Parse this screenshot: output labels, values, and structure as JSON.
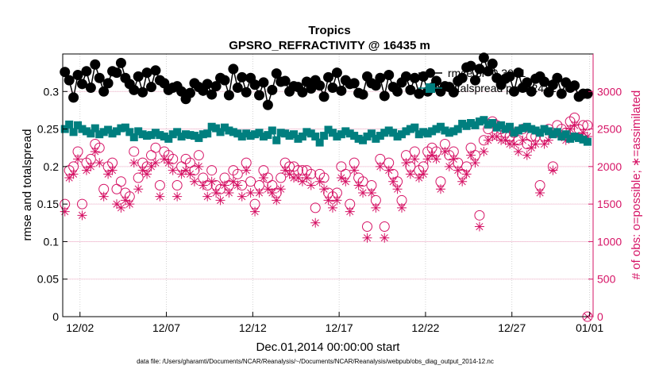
{
  "chart_data": {
    "type": "scatter",
    "title": "Tropics",
    "subtitle": "GPSRO_REFRACTIVITY @ 16435 m",
    "xlabel": "Dec.01,2014 00:00:00 start",
    "ylabel_left": "rmse and totalspread",
    "ylabel_right": "# of obs: o=possible; ∗=assimilated",
    "footer": "data file: /Users/gharamti/Documents/NCAR/Reanalysis/~/Documents/NCAR/Reanalysis/webpub/obs_diag_output_2014-12.nc",
    "xlim": [
      0.5,
      31.2
    ],
    "ylim_left": [
      0,
      0.35
    ],
    "ylim_right": [
      0,
      3500
    ],
    "x_ticks": [
      1.5,
      6.5,
      11.5,
      16.5,
      21.5,
      26.5,
      31
    ],
    "x_tick_labels": [
      "12/02",
      "12/07",
      "12/12",
      "12/17",
      "12/22",
      "12/27",
      "01/01"
    ],
    "y_left_ticks": [
      0,
      0.05,
      0.1,
      0.15,
      0.2,
      0.25,
      0.3
    ],
    "y_left_tick_labels": [
      "0",
      "0.05",
      "0.1",
      "0.15",
      "0.2",
      "0.25",
      "0.3"
    ],
    "y_right_ticks": [
      0,
      500,
      1000,
      1500,
      2000,
      2500,
      3000
    ],
    "y_right_tick_labels": [
      "0",
      "500",
      "1000",
      "1500",
      "2000",
      "2500",
      "3000"
    ],
    "legend": [
      {
        "label": "rmse pr=0.3001",
        "color": "#000000",
        "marker": "circle-filled"
      },
      {
        "label": "totalspread pr=0.2431",
        "color": "#007F7F",
        "marker": "square-filled"
      }
    ],
    "colors": {
      "rmse": "#000000",
      "spread": "#007F7F",
      "obs": "#D61466"
    },
    "series": [
      {
        "name": "rmse",
        "axis": "left",
        "x": [
          0.625,
          0.875,
          1.125,
          1.375,
          1.625,
          1.875,
          2.125,
          2.375,
          2.625,
          2.875,
          3.125,
          3.375,
          3.625,
          3.875,
          4.125,
          4.375,
          4.625,
          4.875,
          5.125,
          5.375,
          5.625,
          5.875,
          6.125,
          6.375,
          6.625,
          6.875,
          7.125,
          7.375,
          7.625,
          7.875,
          8.125,
          8.375,
          8.625,
          8.875,
          9.125,
          9.375,
          9.625,
          9.875,
          10.125,
          10.375,
          10.625,
          10.875,
          11.125,
          11.375,
          11.625,
          11.875,
          12.125,
          12.375,
          12.625,
          12.875,
          13.125,
          13.375,
          13.625,
          13.875,
          14.125,
          14.375,
          14.625,
          14.875,
          15.125,
          15.375,
          15.625,
          15.875,
          16.125,
          16.375,
          16.625,
          16.875,
          17.125,
          17.375,
          17.625,
          17.875,
          18.125,
          18.375,
          18.625,
          18.875,
          19.125,
          19.375,
          19.625,
          19.875,
          20.125,
          20.375,
          20.625,
          20.875,
          21.125,
          21.375,
          21.625,
          21.875,
          22.125,
          22.375,
          22.625,
          22.875,
          23.125,
          23.375,
          23.625,
          23.875,
          24.125,
          24.375,
          24.625,
          24.875,
          25.125,
          25.375,
          25.625,
          25.875,
          26.125,
          26.375,
          26.625,
          26.875,
          27.125,
          27.375,
          27.625,
          27.875,
          28.125,
          28.375,
          28.625,
          28.875,
          29.125,
          29.375,
          29.625,
          29.875,
          30.125,
          30.375,
          30.625,
          30.875
        ],
        "values": [
          0.326,
          0.315,
          0.292,
          0.322,
          0.31,
          0.327,
          0.305,
          0.336,
          0.318,
          0.3,
          0.311,
          0.327,
          0.325,
          0.338,
          0.318,
          0.31,
          0.302,
          0.32,
          0.299,
          0.325,
          0.306,
          0.328,
          0.315,
          0.311,
          0.302,
          0.305,
          0.307,
          0.3,
          0.29,
          0.298,
          0.311,
          0.306,
          0.301,
          0.31,
          0.296,
          0.307,
          0.318,
          0.315,
          0.295,
          0.33,
          0.305,
          0.319,
          0.299,
          0.318,
          0.309,
          0.295,
          0.312,
          0.282,
          0.302,
          0.324,
          0.313,
          0.314,
          0.3,
          0.307,
          0.306,
          0.299,
          0.313,
          0.304,
          0.315,
          0.308,
          0.293,
          0.319,
          0.305,
          0.325,
          0.301,
          0.315,
          0.31,
          0.311,
          0.298,
          0.296,
          0.32,
          0.311,
          0.308,
          0.318,
          0.294,
          0.322,
          0.306,
          0.3,
          0.312,
          0.32,
          0.302,
          0.318,
          0.297,
          0.32,
          0.3,
          0.305,
          0.314,
          0.3,
          0.307,
          0.306,
          0.299,
          0.314,
          0.318,
          0.332,
          0.334,
          0.315,
          0.33,
          0.345,
          0.327,
          0.337,
          0.318,
          0.309,
          0.317,
          0.32,
          0.3,
          0.325,
          0.305,
          0.312,
          0.3,
          0.317,
          0.32,
          0.313,
          0.299,
          0.309,
          0.318,
          0.297,
          0.312,
          0.305,
          0.308,
          0.293,
          0.297,
          0.297
        ]
      },
      {
        "name": "totalspread",
        "axis": "left",
        "x": [
          0.625,
          0.875,
          1.125,
          1.375,
          1.625,
          1.875,
          2.125,
          2.375,
          2.625,
          2.875,
          3.125,
          3.375,
          3.625,
          3.875,
          4.125,
          4.375,
          4.625,
          4.875,
          5.125,
          5.375,
          5.625,
          5.875,
          6.125,
          6.375,
          6.625,
          6.875,
          7.125,
          7.375,
          7.625,
          7.875,
          8.125,
          8.375,
          8.625,
          8.875,
          9.125,
          9.375,
          9.625,
          9.875,
          10.125,
          10.375,
          10.625,
          10.875,
          11.125,
          11.375,
          11.625,
          11.875,
          12.125,
          12.375,
          12.625,
          12.875,
          13.125,
          13.375,
          13.625,
          13.875,
          14.125,
          14.375,
          14.625,
          14.875,
          15.125,
          15.375,
          15.625,
          15.875,
          16.125,
          16.375,
          16.625,
          16.875,
          17.125,
          17.375,
          17.625,
          17.875,
          18.125,
          18.375,
          18.625,
          18.875,
          19.125,
          19.375,
          19.625,
          19.875,
          20.125,
          20.375,
          20.625,
          20.875,
          21.125,
          21.375,
          21.625,
          21.875,
          22.125,
          22.375,
          22.625,
          22.875,
          23.125,
          23.375,
          23.625,
          23.875,
          24.125,
          24.375,
          24.625,
          24.875,
          25.125,
          25.375,
          25.625,
          25.875,
          26.125,
          26.375,
          26.625,
          26.875,
          27.125,
          27.375,
          27.625,
          27.875,
          28.125,
          28.375,
          28.625,
          28.875,
          29.125,
          29.375,
          29.625,
          29.875,
          30.125,
          30.375,
          30.625,
          30.875
        ],
        "values": [
          0.25,
          0.256,
          0.246,
          0.255,
          0.25,
          0.247,
          0.244,
          0.251,
          0.243,
          0.246,
          0.249,
          0.244,
          0.247,
          0.251,
          0.252,
          0.246,
          0.239,
          0.247,
          0.243,
          0.241,
          0.242,
          0.245,
          0.242,
          0.24,
          0.237,
          0.243,
          0.246,
          0.24,
          0.243,
          0.242,
          0.241,
          0.238,
          0.243,
          0.244,
          0.253,
          0.251,
          0.246,
          0.252,
          0.248,
          0.246,
          0.244,
          0.24,
          0.244,
          0.241,
          0.243,
          0.245,
          0.24,
          0.242,
          0.248,
          0.235,
          0.245,
          0.244,
          0.241,
          0.243,
          0.237,
          0.24,
          0.246,
          0.244,
          0.24,
          0.232,
          0.241,
          0.249,
          0.245,
          0.24,
          0.243,
          0.247,
          0.244,
          0.241,
          0.237,
          0.235,
          0.24,
          0.244,
          0.237,
          0.241,
          0.245,
          0.248,
          0.245,
          0.24,
          0.243,
          0.247,
          0.25,
          0.252,
          0.243,
          0.246,
          0.244,
          0.247,
          0.25,
          0.253,
          0.248,
          0.245,
          0.247,
          0.25,
          0.257,
          0.254,
          0.258,
          0.255,
          0.26,
          0.262,
          0.256,
          0.258,
          0.252,
          0.255,
          0.25,
          0.253,
          0.245,
          0.248,
          0.251,
          0.253,
          0.25,
          0.248,
          0.245,
          0.25,
          0.247,
          0.243,
          0.246,
          0.24,
          0.243,
          0.237,
          0.24,
          0.238,
          0.236,
          0.233
        ]
      },
      {
        "name": "possible",
        "axis": "right",
        "x": [
          0.625,
          0.875,
          1.125,
          1.375,
          1.625,
          1.875,
          2.125,
          2.375,
          2.625,
          2.875,
          3.125,
          3.375,
          3.625,
          3.875,
          4.125,
          4.375,
          4.625,
          4.875,
          5.125,
          5.375,
          5.625,
          5.875,
          6.125,
          6.375,
          6.625,
          6.875,
          7.125,
          7.375,
          7.625,
          7.875,
          8.125,
          8.375,
          8.625,
          8.875,
          9.125,
          9.375,
          9.625,
          9.875,
          10.125,
          10.375,
          10.625,
          10.875,
          11.125,
          11.375,
          11.625,
          11.875,
          12.125,
          12.375,
          12.625,
          12.875,
          13.125,
          13.375,
          13.625,
          13.875,
          14.125,
          14.375,
          14.625,
          14.875,
          15.125,
          15.375,
          15.625,
          15.875,
          16.125,
          16.375,
          16.625,
          16.875,
          17.125,
          17.375,
          17.625,
          17.875,
          18.125,
          18.375,
          18.625,
          18.875,
          19.125,
          19.375,
          19.625,
          19.875,
          20.125,
          20.375,
          20.625,
          20.875,
          21.125,
          21.375,
          21.625,
          21.875,
          22.125,
          22.375,
          22.625,
          22.875,
          23.125,
          23.375,
          23.625,
          23.875,
          24.125,
          24.375,
          24.625,
          24.875,
          25.125,
          25.375,
          25.625,
          25.875,
          26.125,
          26.375,
          26.625,
          26.875,
          27.125,
          27.375,
          27.625,
          27.875,
          28.125,
          28.375,
          28.625,
          28.875,
          29.125,
          29.375,
          29.625,
          29.875,
          30.125,
          30.375,
          30.625,
          30.875
        ],
        "values": [
          1500,
          1950,
          2000,
          2200,
          1500,
          2050,
          2100,
          2300,
          2250,
          1700,
          2000,
          2050,
          1700,
          1800,
          1650,
          1600,
          2200,
          1850,
          2050,
          2000,
          2150,
          2250,
          1750,
          2200,
          2150,
          2100,
          1750,
          2000,
          2100,
          2050,
          1950,
          2150,
          1850,
          1750,
          1950,
          1750,
          1700,
          1850,
          1750,
          1950,
          1900,
          1750,
          2050,
          1800,
          1500,
          1750,
          1950,
          1850,
          1750,
          1650,
          1850,
          2050,
          2000,
          2000,
          1950,
          1950,
          1950,
          1900,
          1450,
          1900,
          1850,
          1650,
          1600,
          1650,
          2000,
          1900,
          1500,
          2050,
          1850,
          1800,
          1200,
          1750,
          1550,
          2100,
          1200,
          2050,
          1900,
          1800,
          1550,
          2150,
          2000,
          2200,
          1950,
          2000,
          2200,
          2250,
          2200,
          1800,
          2300,
          2150,
          2200,
          2050,
          1900,
          2000,
          2250,
          2150,
          1350,
          2350,
          2500,
          2600,
          2550,
          2500,
          2450,
          2400,
          2450,
          2350,
          2500,
          2300,
          2400,
          2400,
          1750,
          2400,
          2500,
          2000,
          2550,
          2500,
          2450,
          2600,
          2650,
          2500,
          2550,
          2550
        ]
      },
      {
        "name": "assimilated",
        "axis": "right",
        "x": [
          0.625,
          0.875,
          1.125,
          1.375,
          1.625,
          1.875,
          2.125,
          2.375,
          2.625,
          2.875,
          3.125,
          3.375,
          3.625,
          3.875,
          4.125,
          4.375,
          4.625,
          4.875,
          5.125,
          5.375,
          5.625,
          5.875,
          6.125,
          6.375,
          6.625,
          6.875,
          7.125,
          7.375,
          7.625,
          7.875,
          8.125,
          8.375,
          8.625,
          8.875,
          9.125,
          9.375,
          9.625,
          9.875,
          10.125,
          10.375,
          10.625,
          10.875,
          11.125,
          11.375,
          11.625,
          11.875,
          12.125,
          12.375,
          12.625,
          12.875,
          13.125,
          13.375,
          13.625,
          13.875,
          14.125,
          14.375,
          14.625,
          14.875,
          15.125,
          15.375,
          15.625,
          15.875,
          16.125,
          16.375,
          16.625,
          16.875,
          17.125,
          17.375,
          17.625,
          17.875,
          18.125,
          18.375,
          18.625,
          18.875,
          19.125,
          19.375,
          19.625,
          19.875,
          20.125,
          20.375,
          20.625,
          20.875,
          21.125,
          21.375,
          21.625,
          21.875,
          22.125,
          22.375,
          22.625,
          22.875,
          23.125,
          23.375,
          23.625,
          23.875,
          24.125,
          24.375,
          24.625,
          24.875,
          25.125,
          25.375,
          25.625,
          25.875,
          26.125,
          26.375,
          26.625,
          26.875,
          27.125,
          27.375,
          27.625,
          27.875,
          28.125,
          28.375,
          28.625,
          28.875,
          29.125,
          29.375,
          29.625,
          29.875,
          30.125,
          30.375,
          30.625,
          30.875
        ],
        "values": [
          1400,
          1850,
          1900,
          2100,
          1350,
          1950,
          2000,
          2200,
          2050,
          1600,
          1900,
          1950,
          1500,
          1450,
          1550,
          1500,
          2050,
          1700,
          1950,
          1900,
          2000,
          2050,
          1600,
          2100,
          2050,
          1950,
          1600,
          1900,
          1950,
          1900,
          1800,
          2000,
          1750,
          1600,
          1800,
          1650,
          1550,
          1750,
          1650,
          1800,
          1750,
          1600,
          1950,
          1650,
          1400,
          1650,
          1850,
          1700,
          1650,
          1550,
          1700,
          1950,
          1900,
          1850,
          1850,
          1800,
          1850,
          1750,
          1250,
          1800,
          1700,
          1550,
          1450,
          1550,
          1850,
          1800,
          1400,
          1950,
          1750,
          1650,
          1050,
          1650,
          1450,
          2000,
          1050,
          1950,
          1800,
          1700,
          1450,
          2050,
          1900,
          2100,
          1850,
          1900,
          2100,
          2150,
          2100,
          1700,
          2200,
          2000,
          2100,
          1950,
          1800,
          1900,
          2150,
          2050,
          1200,
          2200,
          2350,
          2400,
          2400,
          2350,
          2350,
          2300,
          2300,
          2200,
          2350,
          2150,
          2250,
          2300,
          1650,
          2300,
          2350,
          1950,
          2450,
          2400,
          2350,
          2500,
          2550,
          2400,
          2450,
          2400
        ]
      }
    ],
    "end_marker": {
      "x": 30.875,
      "value": 0,
      "axis": "right"
    }
  }
}
